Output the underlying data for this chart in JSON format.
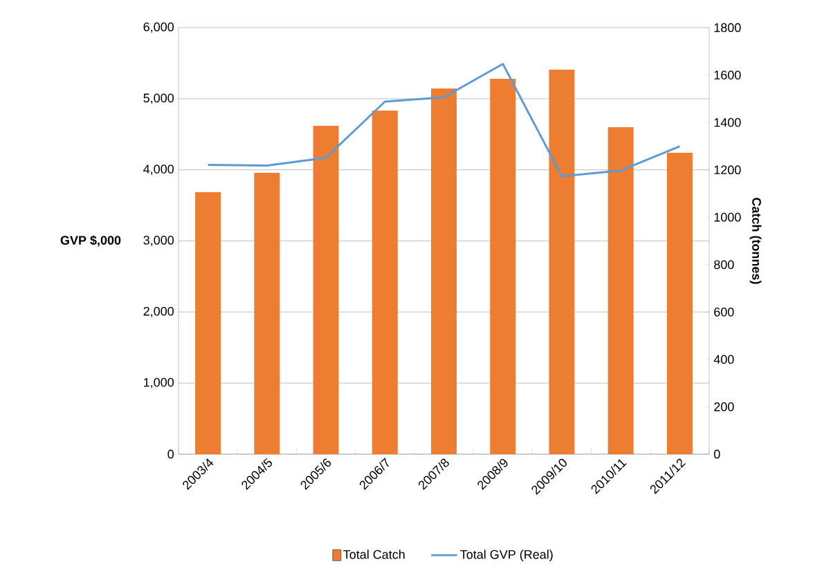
{
  "chart_data": {
    "type": "bar",
    "categories": [
      "2003/4",
      "2004/5",
      "2005/6",
      "2006/7",
      "2007/8",
      "2008/9",
      "2009/10",
      "2010/11",
      "2011/12"
    ],
    "series": [
      {
        "name": "Total Catch",
        "axis": "y2",
        "color": "#ed7d31",
        "values": [
          1106,
          1187,
          1386,
          1450,
          1543,
          1584,
          1623,
          1380,
          1272
        ]
      },
      {
        "name": "Total GVP (Real)",
        "type": "line",
        "axis": "y",
        "color": "#5b9bd5",
        "values": [
          4070,
          4060,
          4170,
          4960,
          5020,
          5490,
          3910,
          3990,
          4330
        ]
      }
    ],
    "ylabel": "GVP $,000",
    "y2label": "Catch (tonnes)",
    "ylim": [
      0,
      6000
    ],
    "yticks": [
      {
        "value": 0,
        "label": "0"
      },
      {
        "value": 1000,
        "label": "1,000"
      },
      {
        "value": 2000,
        "label": "2,000"
      },
      {
        "value": 3000,
        "label": "3,000"
      },
      {
        "value": 4000,
        "label": "4,000"
      },
      {
        "value": 5000,
        "label": "5,000"
      },
      {
        "value": 6000,
        "label": "6,000"
      }
    ],
    "y2lim": [
      0,
      1800
    ],
    "y2ticks": [
      0,
      200,
      400,
      600,
      800,
      1000,
      1200,
      1400,
      1600,
      1800
    ],
    "grid": "y",
    "legend": "bottom",
    "marker": "none"
  }
}
